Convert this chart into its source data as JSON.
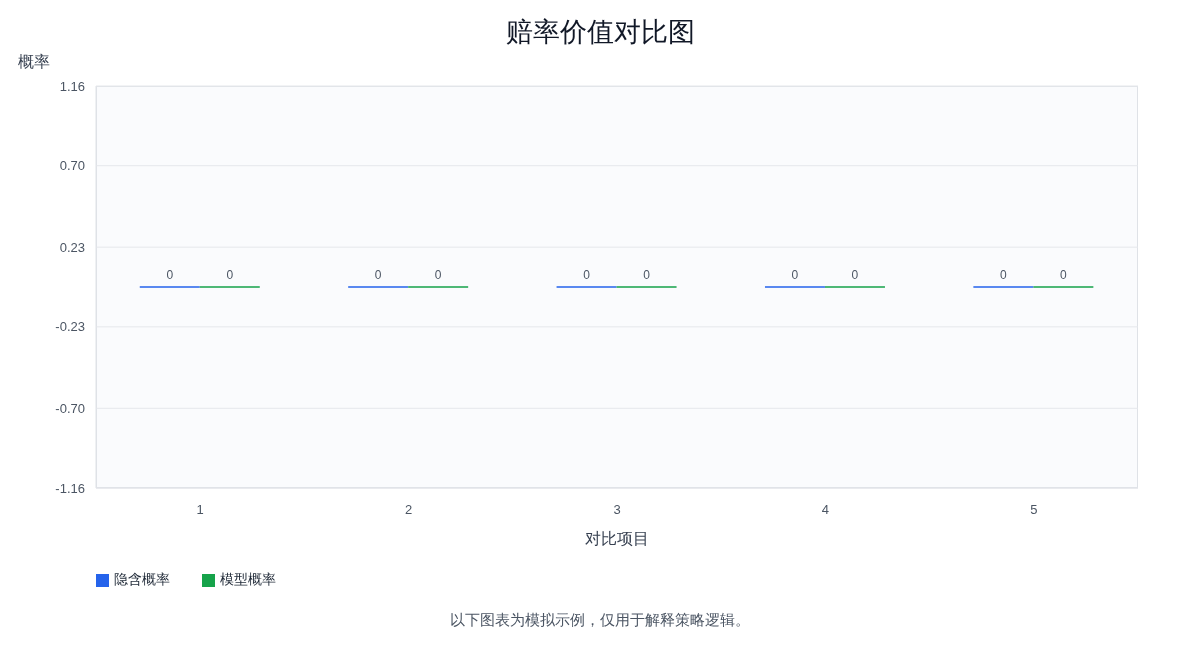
{
  "chart_data": {
    "type": "bar",
    "title": "赔率价值对比图",
    "xlabel": "对比项目",
    "ylabel": "概率",
    "categories": [
      "1",
      "2",
      "3",
      "4",
      "5"
    ],
    "series": [
      {
        "name": "隐含概率",
        "color": "#2563eb",
        "values": [
          0,
          0,
          0,
          0,
          0
        ]
      },
      {
        "name": "模型概率",
        "color": "#16a34a",
        "values": [
          0,
          0,
          0,
          0,
          0
        ]
      }
    ],
    "ylim": [
      -1.16,
      1.16
    ],
    "yticks": [
      -1.16,
      {
        "value": -0.7,
        "label": "-0.70"
      },
      -0.23,
      0.23,
      {
        "value": 0.7,
        "label": "0.70"
      },
      1.16
    ],
    "data_labels": true,
    "grid": "y",
    "legend": "bottom left",
    "annotations": [
      "以下图表为模拟示例，仅用于解释策略逻辑。"
    ]
  }
}
